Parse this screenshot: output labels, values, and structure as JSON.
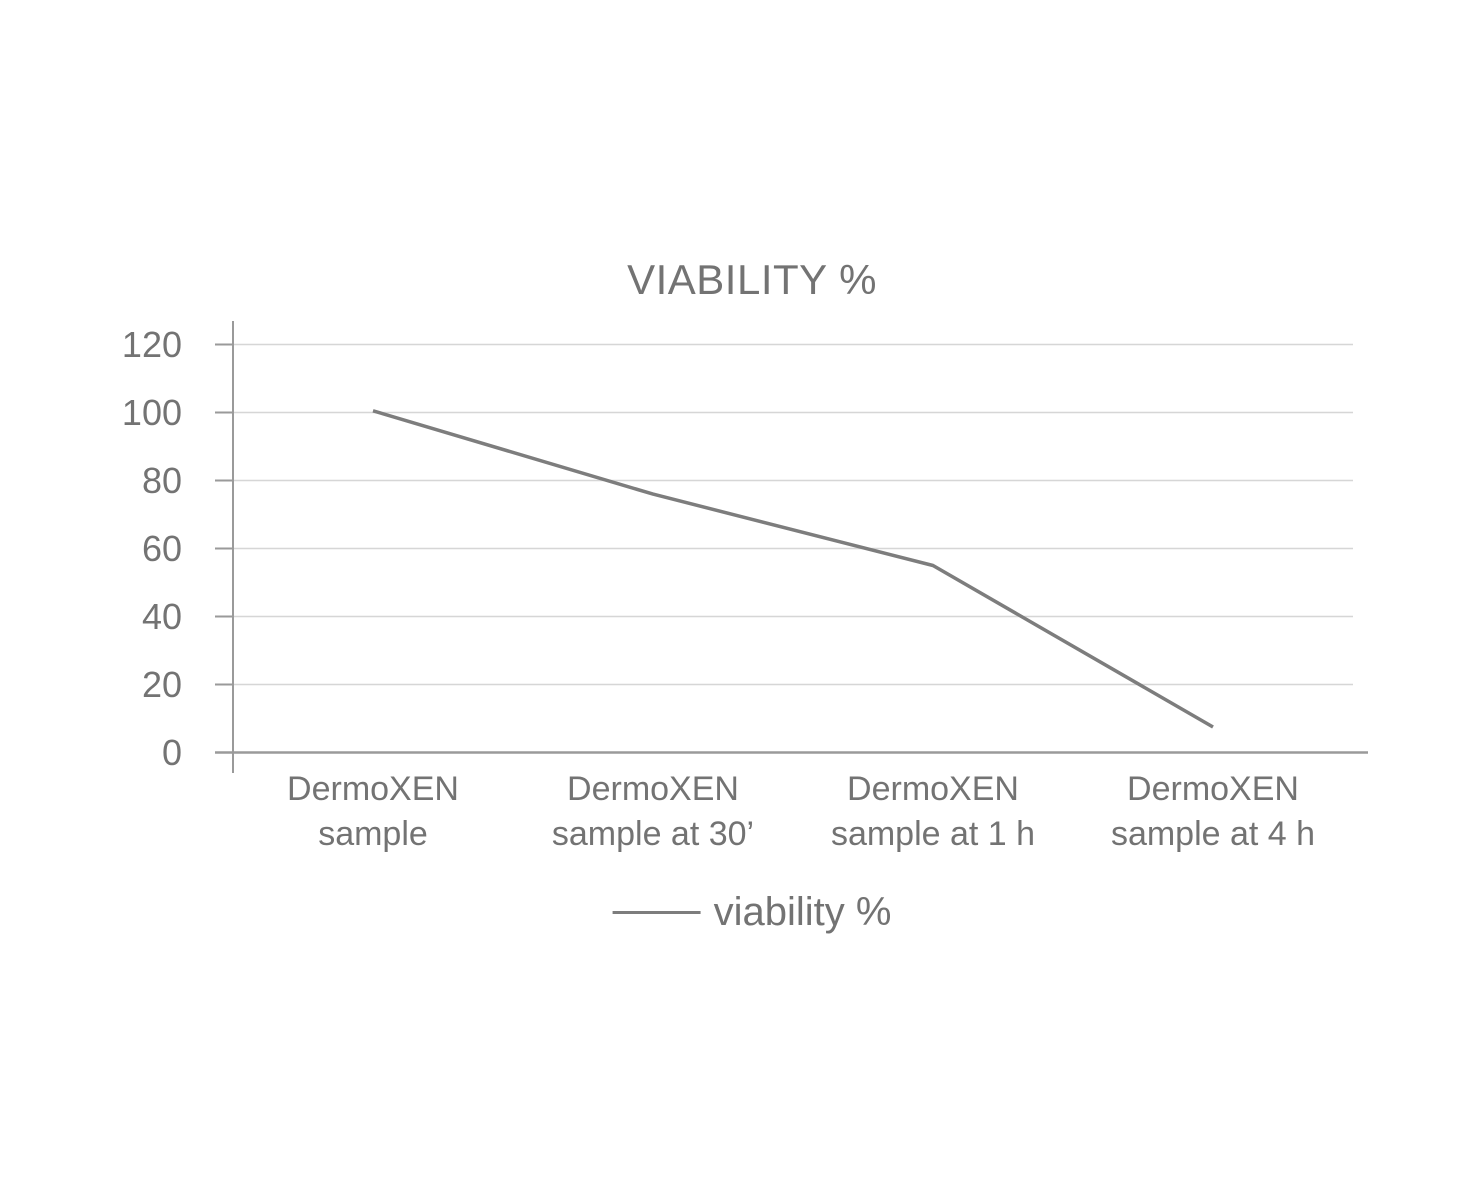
{
  "chart_data": {
    "type": "line",
    "title": "VIABILITY %",
    "categories": [
      "DermoXEN\nsample",
      "DermoXEN\nsample at 30’",
      "DermoXEN\nsample at 1 h",
      "DermoXEN\nsample at 4 h"
    ],
    "series": [
      {
        "name": "viability %",
        "values": [
          100.5,
          76,
          55,
          7.5
        ]
      }
    ],
    "y_ticks": [
      0,
      20,
      40,
      60,
      80,
      100,
      120
    ],
    "ylim": [
      0,
      120
    ],
    "xlabel": "",
    "ylabel": "",
    "grid": "horizontal",
    "legend_position": "bottom-center",
    "marker": "none",
    "colors": {
      "series_line": "#7d7d7d",
      "grid_line": "#d6d6d6",
      "axis_line": "#9a9a9a",
      "text": "#737373",
      "background": "#ffffff"
    }
  }
}
